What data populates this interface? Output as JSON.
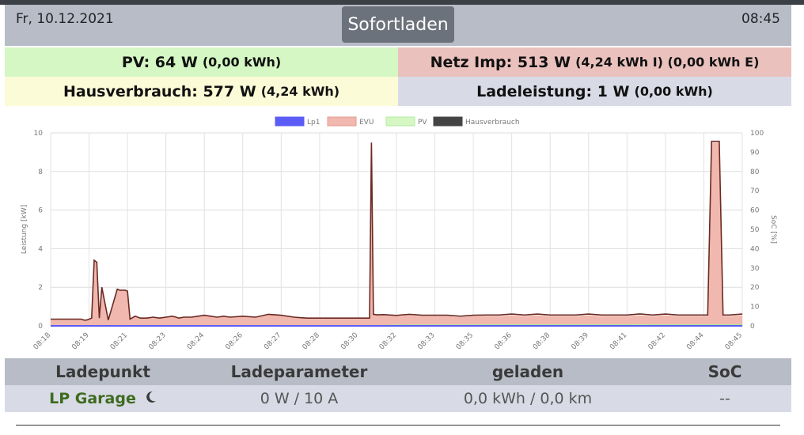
{
  "header": {
    "date": "Fr, 10.12.2021",
    "mode": "Sofortladen",
    "time": "08:45"
  },
  "summary": {
    "pv_label": "PV: 64 W",
    "pv_sub": "(0,00 kWh)",
    "netz_label": "Netz Imp: 513 W",
    "netz_sub": "(4,24 kWh I) (0,00 kWh E)",
    "haus_label": "Hausverbrauch: 577 W",
    "haus_sub": "(4,24 kWh)",
    "lade_label": "Ladeleistung: 1 W",
    "lade_sub": "(0,00 kWh)"
  },
  "colors": {
    "lp1": "#5b5bf5",
    "evu": "#f0b8ae",
    "pv": "#d4f7c3",
    "haus": "#444444"
  },
  "chart_data": {
    "type": "area",
    "ylabel": "Leistung [kW]",
    "y2label": "SoC [%]",
    "ylim": [
      0,
      10
    ],
    "y2lim": [
      0,
      100
    ],
    "yticks": [
      "0",
      "2",
      "4",
      "6",
      "8",
      "10"
    ],
    "y2ticks": [
      "0",
      "10",
      "20",
      "30",
      "40",
      "50",
      "60",
      "70",
      "80",
      "90",
      "100"
    ],
    "xlabels": [
      "08:18",
      "08:19",
      "08:21",
      "08:23",
      "08:24",
      "08:26",
      "08:27",
      "08:28",
      "08:30",
      "08:32",
      "08:33",
      "08:35",
      "08:36",
      "08:38",
      "08:39",
      "08:41",
      "08:42",
      "08:44",
      "08:45"
    ],
    "grid": true,
    "legend": "top",
    "series": [
      {
        "name": "Lp1",
        "color": "#5b5bf5"
      },
      {
        "name": "EVU",
        "color": "#f0b8ae"
      },
      {
        "name": "PV",
        "color": "#d4f7c3"
      },
      {
        "name": "Hausverbrauch",
        "color": "#444444"
      }
    ],
    "x": [
      0,
      1,
      1.6,
      2.4,
      2.6,
      2.8,
      3.0,
      3.2,
      3.4,
      3.6,
      3.8,
      4.0,
      4.5,
      5.2,
      5.4,
      5.8,
      6,
      6.2,
      6.6,
      7,
      7.5,
      8,
      8.5,
      9,
      9.5,
      9.8,
      10,
      10.4,
      11,
      11.5,
      12,
      12.5,
      13,
      13.5,
      14,
      15,
      16,
      17,
      18,
      19,
      20,
      21,
      22,
      23,
      24,
      24.9,
      25.05,
      25.2,
      25.5,
      26,
      27,
      28,
      29,
      30,
      31,
      32,
      33,
      34,
      35,
      36,
      37,
      38,
      39,
      40,
      41,
      42,
      43,
      44,
      45,
      46,
      47,
      48,
      49,
      50,
      51,
      51.3,
      51.6,
      52.2,
      52.5,
      52.8,
      53,
      54
    ],
    "evu": [
      0.35,
      0.35,
      0.35,
      0.35,
      0.3,
      0.3,
      0.35,
      0.4,
      3.4,
      3.3,
      0.4,
      2.0,
      0.3,
      1.9,
      1.85,
      1.85,
      1.8,
      0.35,
      0.5,
      0.4,
      0.4,
      0.45,
      0.4,
      0.45,
      0.5,
      0.45,
      0.4,
      0.45,
      0.45,
      0.5,
      0.55,
      0.5,
      0.45,
      0.5,
      0.45,
      0.5,
      0.45,
      0.6,
      0.55,
      0.45,
      0.4,
      0.4,
      0.4,
      0.4,
      0.4,
      0.4,
      9.5,
      0.6,
      0.55,
      0.55,
      0.5,
      0.55,
      0.5,
      0.5,
      0.5,
      0.45,
      0.5,
      0.5,
      0.5,
      0.55,
      0.5,
      0.55,
      0.5,
      0.5,
      0.5,
      0.55,
      0.5,
      0.5,
      0.5,
      0.55,
      0.5,
      0.55,
      0.5,
      0.5,
      0.5,
      0.5,
      9.5,
      9.5,
      0.5,
      0.5,
      0.5,
      0.55
    ],
    "pv": [
      0,
      0,
      0,
      0,
      0,
      0,
      0,
      0,
      0,
      0,
      0,
      0,
      0,
      0,
      0,
      0,
      0,
      0,
      0,
      0,
      0,
      0,
      0,
      0,
      0,
      0,
      0,
      0,
      0,
      0,
      0,
      0,
      0,
      0,
      0,
      0,
      0,
      0,
      0,
      0,
      0,
      0,
      0,
      0,
      0,
      0,
      0,
      0,
      0.02,
      0.03,
      0.04,
      0.05,
      0.05,
      0.05,
      0.05,
      0.05,
      0.05,
      0.06,
      0.06,
      0.06,
      0.06,
      0.06,
      0.06,
      0.06,
      0.06,
      0.06,
      0.06,
      0.06,
      0.06,
      0.07,
      0.06,
      0.06,
      0.06,
      0.06,
      0.06,
      0.06,
      0.06,
      0.06,
      0.06,
      0.06,
      0.06,
      0.06
    ]
  },
  "table": {
    "headers": [
      "Ladepunkt",
      "Ladeparameter",
      "geladen",
      "SoC"
    ],
    "row": {
      "name": "LP Garage",
      "params": "0 W / 10 A",
      "charged": "0,0 kWh / 0,0 km",
      "soc": "--"
    }
  }
}
